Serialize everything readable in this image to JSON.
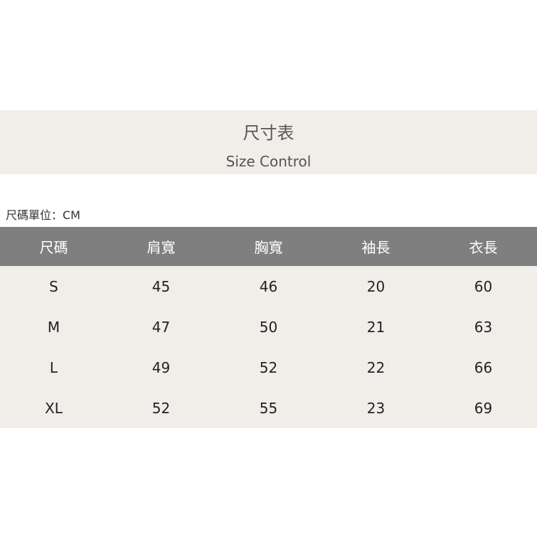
{
  "banner": {
    "title": "尺寸表",
    "subtitle": "Size Control"
  },
  "unit_label": "尺碼單位：CM",
  "table": {
    "headers": [
      "尺碼",
      "肩寬",
      "胸寬",
      "袖長",
      "衣長"
    ],
    "rows": [
      [
        "S",
        "45",
        "46",
        "20",
        "60"
      ],
      [
        "M",
        "47",
        "50",
        "21",
        "63"
      ],
      [
        "L",
        "49",
        "52",
        "22",
        "66"
      ],
      [
        "XL",
        "52",
        "55",
        "23",
        "69"
      ]
    ]
  },
  "colors": {
    "header_bg": "#7f7f7f",
    "row_bg": "#f1ede9"
  }
}
